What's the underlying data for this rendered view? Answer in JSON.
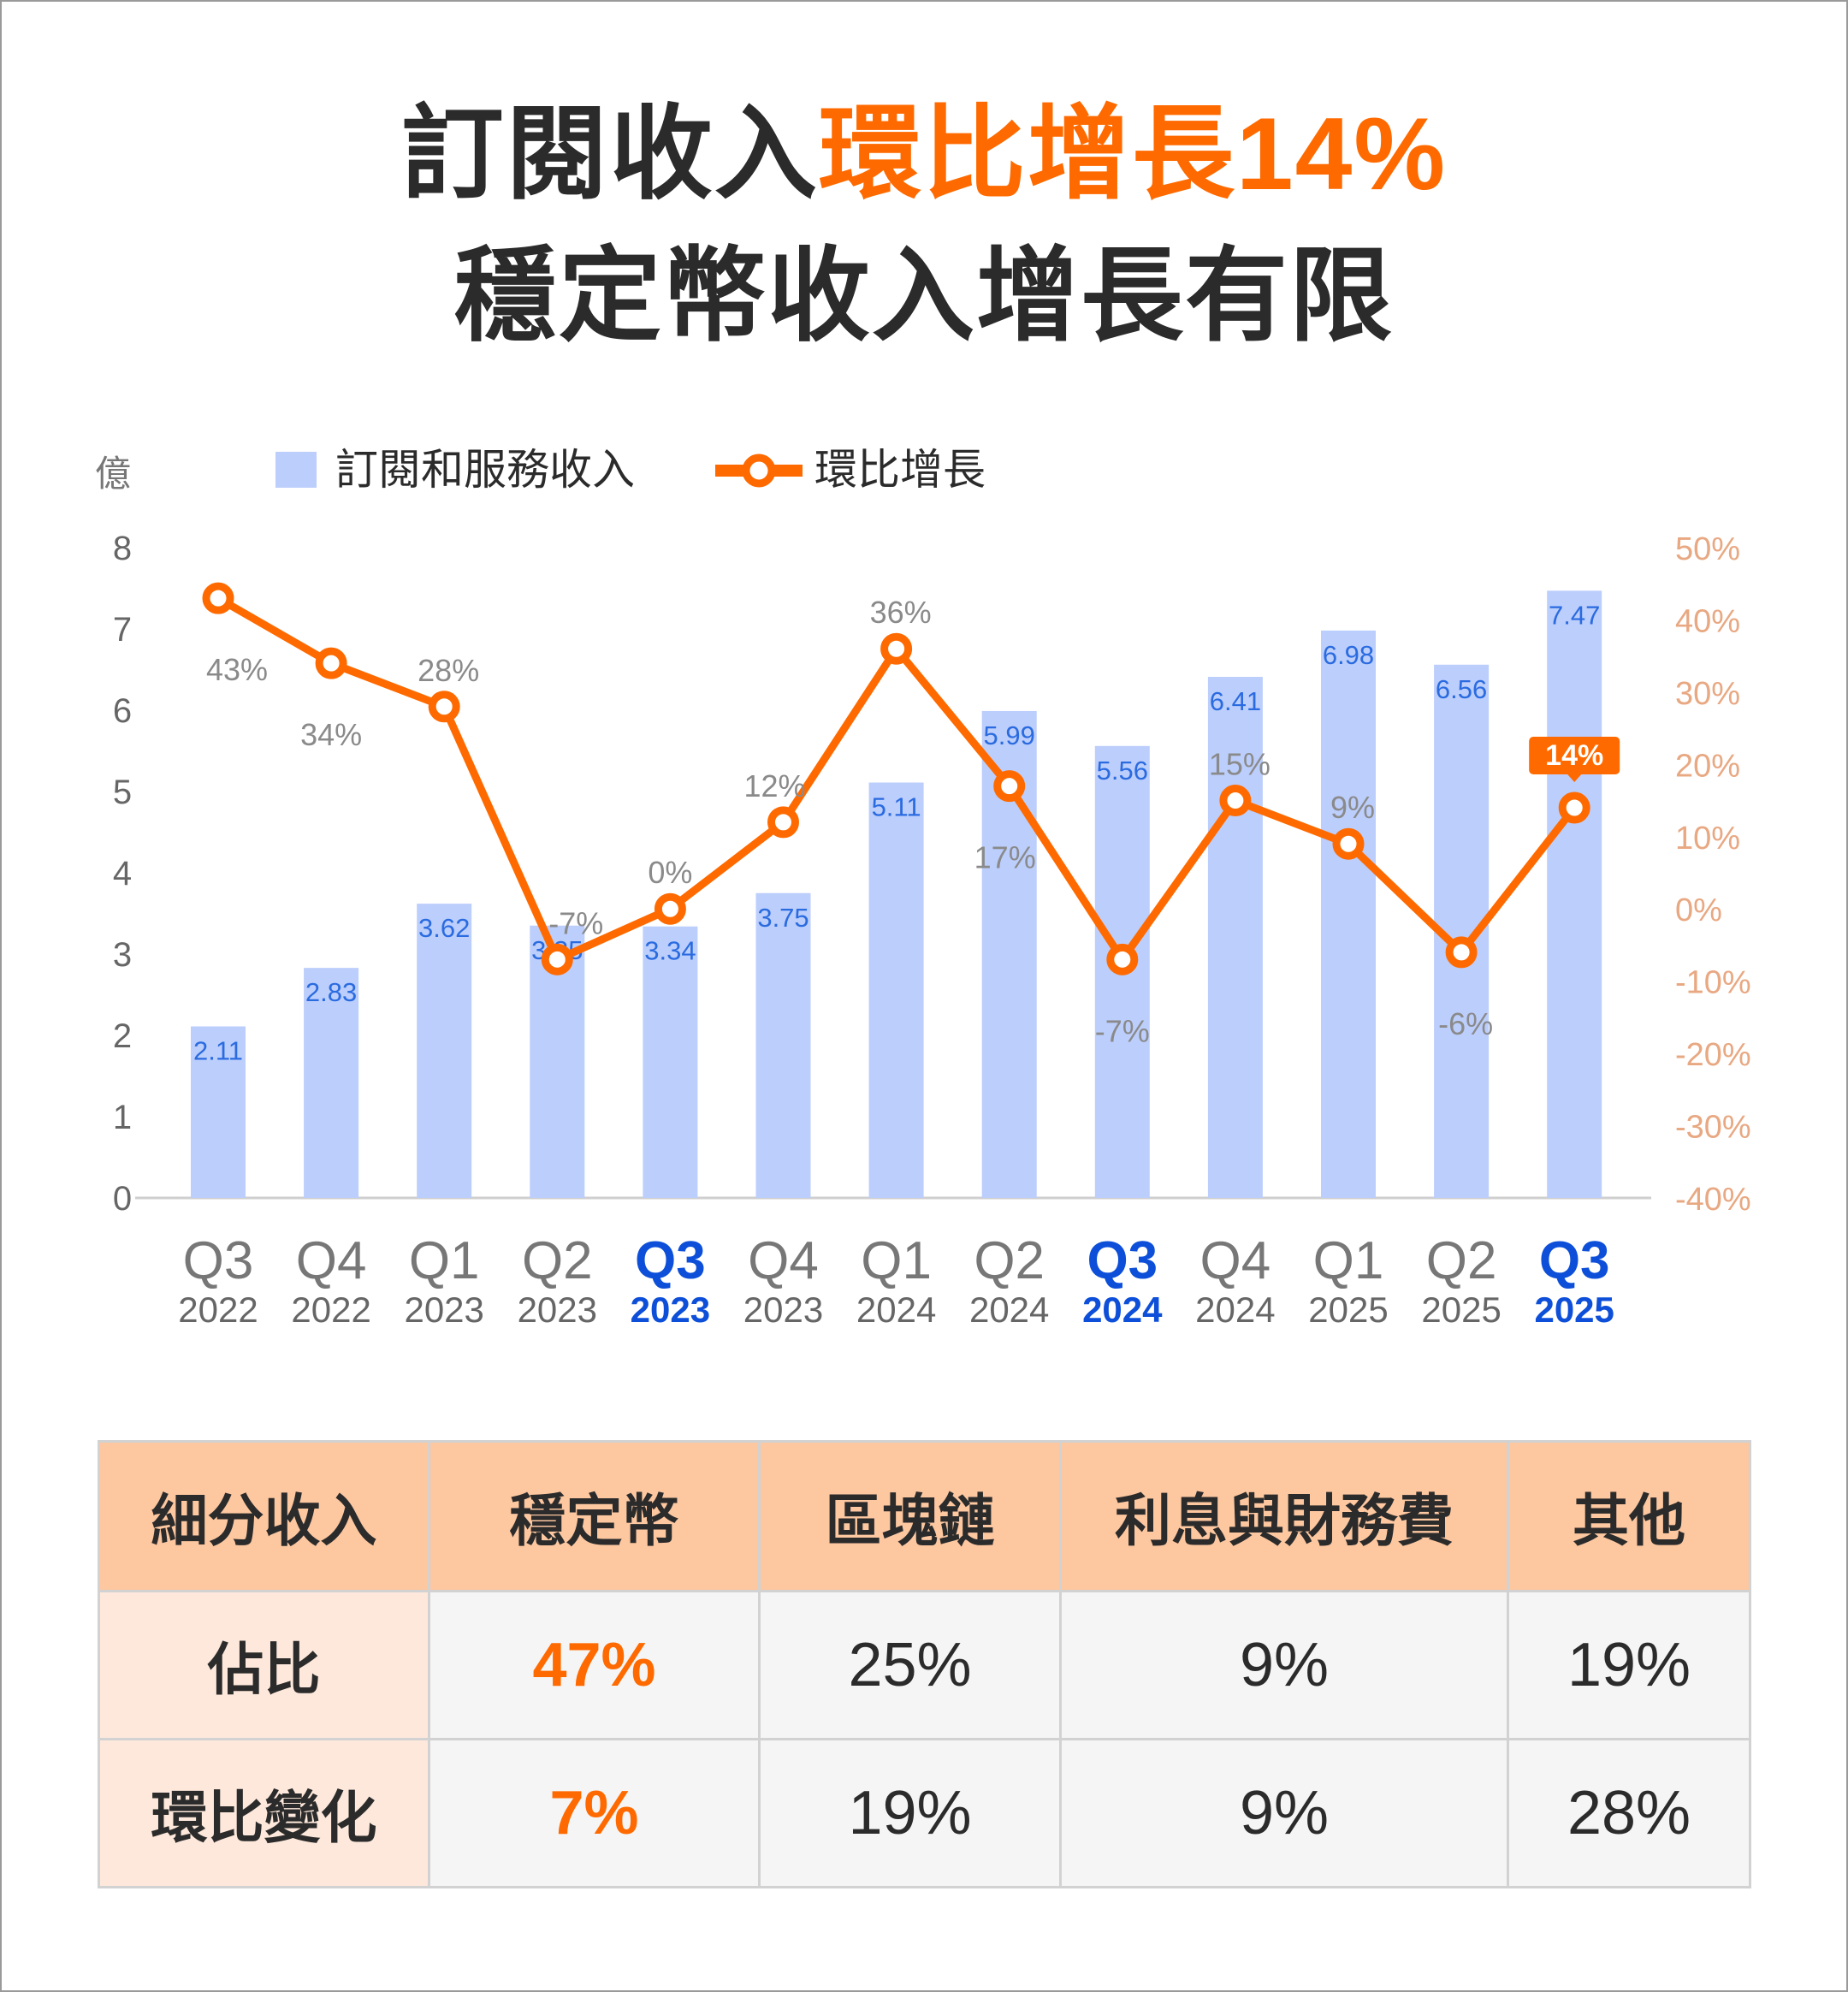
{
  "title": {
    "line1_prefix": "訂閱收入",
    "line1_highlight": "環比增長14%",
    "line2": "穩定幣收入增長有限"
  },
  "colors": {
    "bar": "#bccefc",
    "bar_label": "#2a6be0",
    "line": "#ff6a00",
    "right_axis": "#e8a882",
    "highlight": "#ff6a00",
    "highlight_year": "#0d4fd8"
  },
  "chart_data": {
    "type": "bar+line",
    "left_axis_unit": "億",
    "legend": [
      "訂閱和服務收入",
      "環比增長"
    ],
    "legend_position": "top",
    "categories": [
      {
        "q": "Q3",
        "y": "2022",
        "highlight": false
      },
      {
        "q": "Q4",
        "y": "2022",
        "highlight": false
      },
      {
        "q": "Q1",
        "y": "2023",
        "highlight": false
      },
      {
        "q": "Q2",
        "y": "2023",
        "highlight": false
      },
      {
        "q": "Q3",
        "y": "2023",
        "highlight": true
      },
      {
        "q": "Q4",
        "y": "2023",
        "highlight": false
      },
      {
        "q": "Q1",
        "y": "2024",
        "highlight": false
      },
      {
        "q": "Q2",
        "y": "2024",
        "highlight": false
      },
      {
        "q": "Q3",
        "y": "2024",
        "highlight": true
      },
      {
        "q": "Q4",
        "y": "2024",
        "highlight": false
      },
      {
        "q": "Q1",
        "y": "2025",
        "highlight": false
      },
      {
        "q": "Q2",
        "y": "2025",
        "highlight": false
      },
      {
        "q": "Q3",
        "y": "2025",
        "highlight": true
      }
    ],
    "series": [
      {
        "name": "訂閱和服務收入",
        "type": "bar",
        "axis": "left",
        "values": [
          2.11,
          2.83,
          3.62,
          3.35,
          3.34,
          3.75,
          5.11,
          5.99,
          5.56,
          6.41,
          6.98,
          6.56,
          7.47
        ]
      },
      {
        "name": "環比增長",
        "type": "line",
        "axis": "right",
        "values": [
          43,
          34,
          28,
          -7,
          0,
          12,
          36,
          17,
          -7,
          15,
          9,
          -6,
          14
        ],
        "labels": [
          "43%",
          "34%",
          "28%",
          "-7%",
          "0%",
          "12%",
          "36%",
          "17%",
          "-7%",
          "15%",
          "9%",
          "-6%",
          "14%"
        ]
      }
    ],
    "left_ylim": [
      0,
      8
    ],
    "left_ticks": [
      "0",
      "1",
      "2",
      "3",
      "4",
      "5",
      "6",
      "7",
      "8"
    ],
    "right_ylim": [
      -40,
      50
    ],
    "right_ticks": [
      "-40%",
      "-30%",
      "-20%",
      "-10%",
      "0%",
      "10%",
      "20%",
      "30%",
      "40%",
      "50%"
    ],
    "grid": false
  },
  "table": {
    "headers": [
      "細分收入",
      "穩定幣",
      "區塊鏈",
      "利息與財務費",
      "其他"
    ],
    "rows": [
      {
        "label": "佔比",
        "values": [
          "47%",
          "25%",
          "9%",
          "19%"
        ]
      },
      {
        "label": "環比變化",
        "values": [
          "7%",
          "19%",
          "9%",
          "28%"
        ]
      }
    ]
  }
}
